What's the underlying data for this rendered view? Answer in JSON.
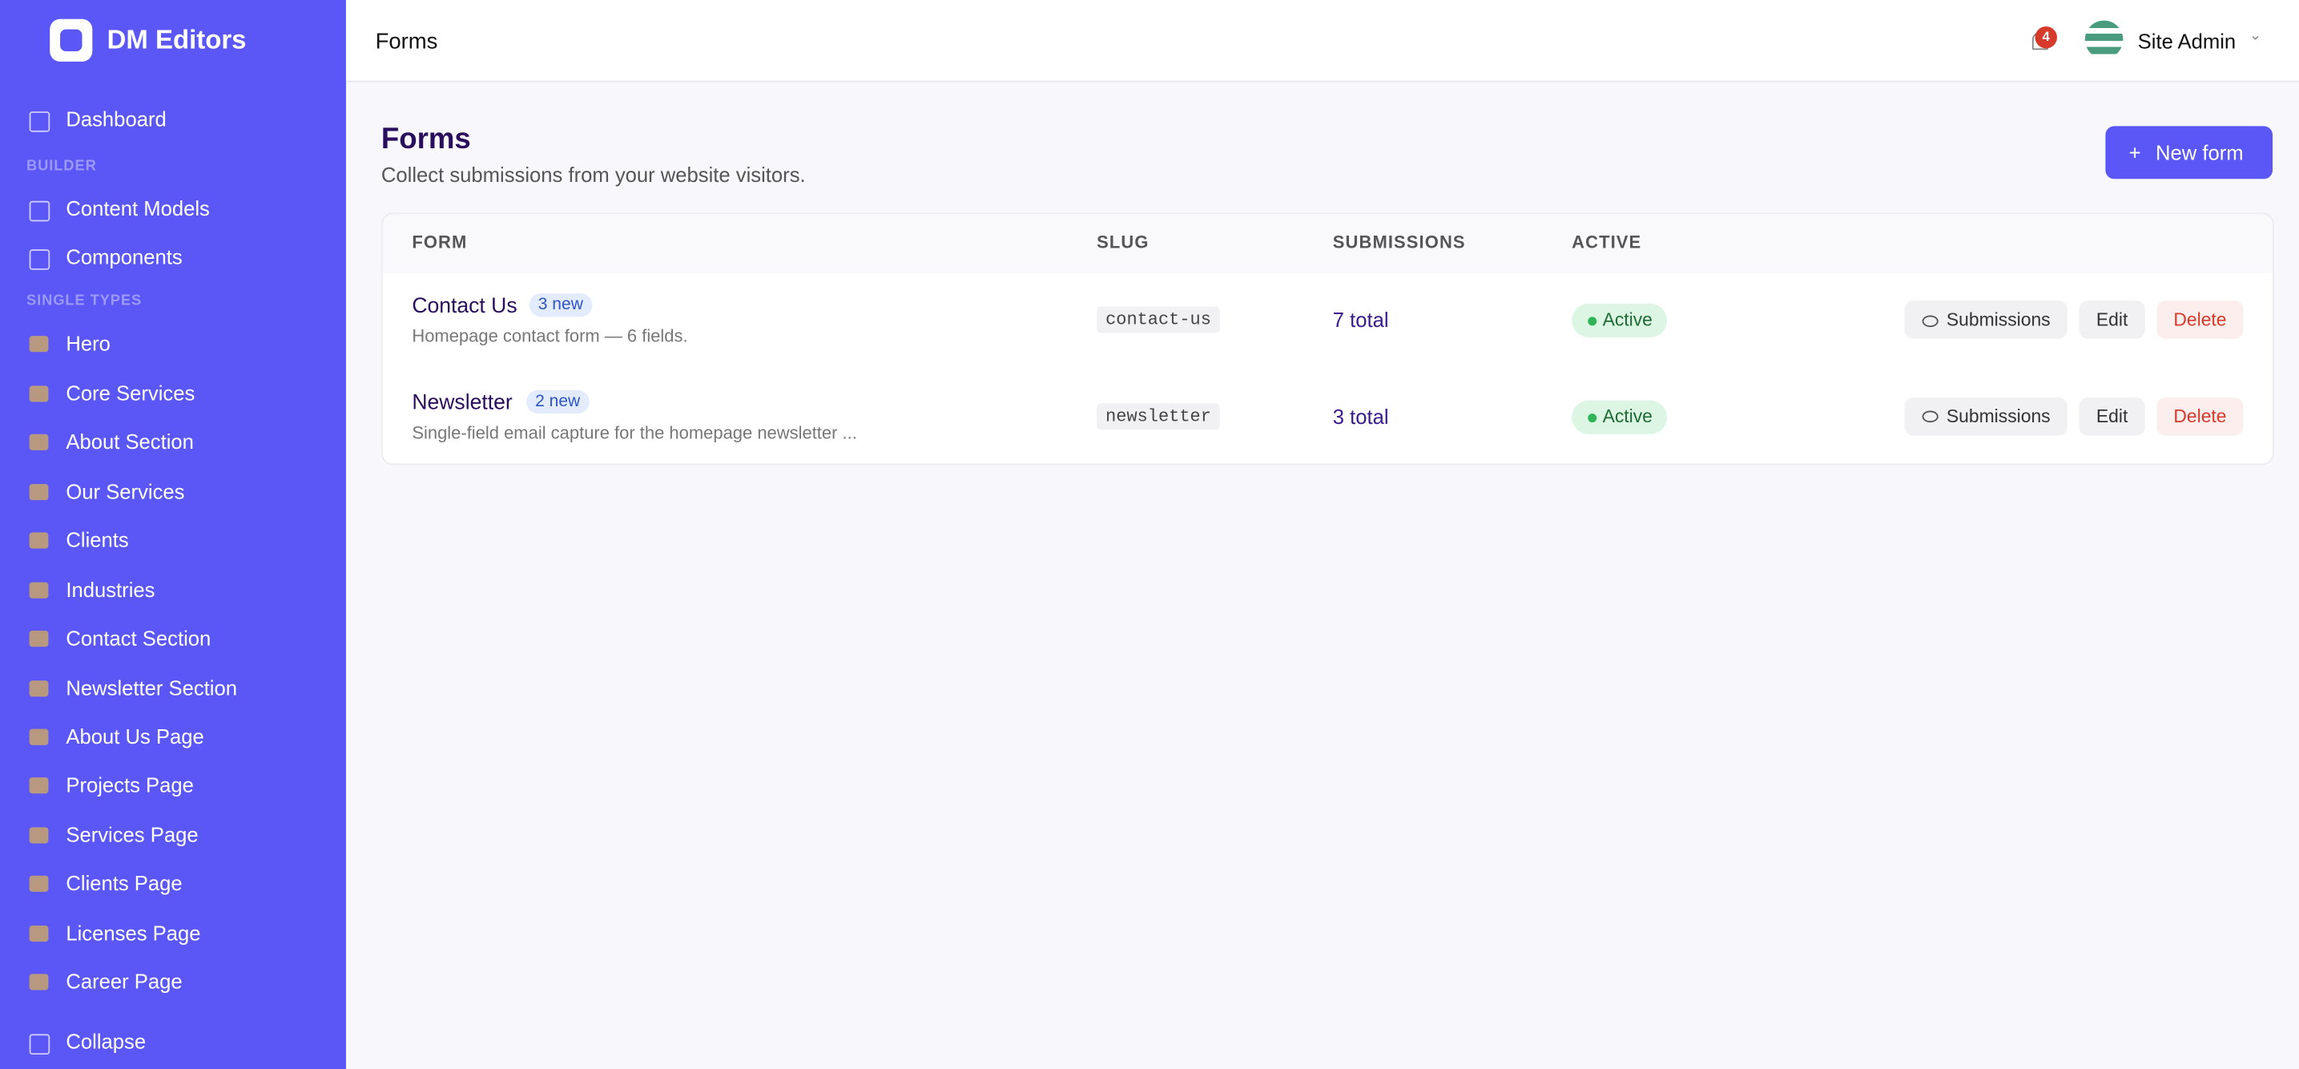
{
  "brand": "DM Editors",
  "nav": {
    "dashboard": "Dashboard",
    "sections": [
      {
        "title": "BUILDER",
        "items": [
          "Content Models",
          "Components"
        ]
      },
      {
        "title": "SINGLE TYPES",
        "items": [
          "Hero",
          "Core Services",
          "About Section",
          "Our Services",
          "Clients",
          "Industries",
          "Contact Section",
          "Newsletter Section",
          "About Us Page",
          "Projects Page",
          "Services Page",
          "Clients Page",
          "Licenses Page",
          "Career Page"
        ]
      }
    ],
    "collapse": "Collapse"
  },
  "topbar": {
    "title": "Forms",
    "notifications": "4",
    "user": "Site Admin"
  },
  "page": {
    "title": "Forms",
    "subtitle": "Collect submissions from your website visitors.",
    "new_button": "New form"
  },
  "table": {
    "headers": [
      "FORM",
      "SLUG",
      "SUBMISSIONS",
      "ACTIVE"
    ],
    "rows": [
      {
        "name": "Contact Us",
        "badge": "3 new",
        "description": "Homepage contact form — 6 fields.",
        "slug": "contact-us",
        "submissions": "7 total",
        "active": "Active"
      },
      {
        "name": "Newsletter",
        "badge": "2 new",
        "description": "Single-field email capture for the homepage newsletter ...",
        "slug": "newsletter",
        "submissions": "3 total",
        "active": "Active"
      }
    ],
    "actions": [
      "Submissions",
      "Edit",
      "Delete"
    ]
  }
}
